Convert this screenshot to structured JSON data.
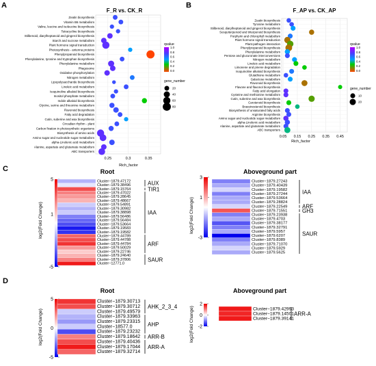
{
  "panels": {
    "A": {
      "label": "A",
      "title": "F_R vs. CK_R",
      "xlabel": "Rich_factor",
      "xticks": [
        "0.25",
        "0.3",
        "0.35"
      ],
      "legend": {
        "qvalue_title": "qvalue",
        "qvalue_ticks": [
          "1.0",
          "0.8",
          "0.6",
          "0.4",
          "0.2",
          "0.0"
        ],
        "gene_title": "gene_number",
        "gene_items": [
          "20",
          "40",
          "60",
          "80"
        ]
      }
    },
    "B": {
      "label": "B",
      "title": "F_AP vs. CK_AP",
      "xlabel": "Rich_factor",
      "xticks": [
        "0.05",
        "0.15",
        "0.25",
        "0.35",
        "0.45"
      ],
      "legend": {
        "qvalue_title": "qvalue",
        "qvalue_ticks": [
          "1.0",
          "0.8",
          "0.6",
          "0.4",
          "0.2",
          "0.0"
        ],
        "gene_title": "gene_number",
        "gene_items": [
          "10",
          "20"
        ]
      }
    },
    "C": {
      "label": "C",
      "ylabel": "log2(Fold Change)",
      "root_title": "Root",
      "ag_title": "Aboveground part"
    },
    "D": {
      "label": "D",
      "ylabel": "log2(Fold Change)",
      "root_title": "Root",
      "ag_title": "Aboveground part"
    }
  },
  "chart_data": [
    {
      "type": "scatter",
      "panel": "A",
      "title": "F_R vs. CK_R",
      "xlabel": "Rich_factor",
      "xlim": [
        0.22,
        0.38
      ],
      "categories": [
        "Zeatin biosynthesis",
        "Vitamin B6 metabolism",
        "Valine, leucine and isoleucine biosynthesis",
        "Tetracycline biosynthesis",
        "Stilbenoid, diarylheptanoid and gingerol biosynthesis",
        "Starch and sucrose metabolism",
        "Plant hormone signal transduction",
        "Photosynthesis - antenna proteins",
        "Phenylpropanoid biosynthesis",
        "Phenylalanine, tyrosine and tryptophan biosynthesis",
        "Phenylalanine metabolism",
        "Phagosome",
        "Oxidative phosphorylation",
        "Nitrogen metabolism",
        "Lipopolysaccharide biosynthesis",
        "Linoleic acid metabolism",
        "Isoquinoline alkaloid biosynthesis",
        "Inositol phosphate metabolism",
        "Indole alkaloid biosynthesis",
        "Glycine, serine and threonine metabolism",
        "Flavonoid biosynthesis",
        "Fatty acid degradation",
        "Cutin, suberine and wax biosynthesis",
        "Circadian rhythm - plant",
        "Carbon fixation in photosynthetic organisms",
        "Biosynthesis of amino acids",
        "Amino sugar and nucleotide sugar metabolism",
        "alpha-Linolenic acid metabolism",
        "Alanine, aspartate and glutamate metabolism",
        "ABC transporters"
      ],
      "x": [
        0.268,
        0.282,
        0.26,
        0.275,
        0.255,
        0.24,
        0.245,
        0.305,
        0.355,
        0.285,
        0.258,
        0.262,
        0.248,
        0.31,
        0.265,
        0.295,
        0.27,
        0.262,
        0.34,
        0.26,
        0.27,
        0.28,
        0.295,
        0.272,
        0.258,
        0.232,
        0.238,
        0.26,
        0.24,
        0.235
      ],
      "qvalue": [
        0.7,
        0.7,
        0.7,
        0.7,
        0.8,
        0.8,
        0.8,
        0.5,
        0.0,
        0.7,
        0.8,
        0.8,
        0.8,
        0.6,
        0.7,
        0.7,
        0.7,
        0.7,
        0.3,
        0.7,
        0.7,
        0.7,
        0.5,
        0.7,
        0.7,
        0.8,
        0.8,
        0.7,
        0.8,
        0.8
      ],
      "gene_number": [
        20,
        20,
        15,
        15,
        30,
        30,
        60,
        15,
        80,
        20,
        40,
        30,
        30,
        20,
        10,
        20,
        15,
        20,
        25,
        25,
        30,
        20,
        15,
        20,
        25,
        60,
        50,
        30,
        30,
        50
      ]
    },
    {
      "type": "scatter",
      "panel": "B",
      "title": "F_AP vs. CK_AP",
      "xlabel": "Rich_factor",
      "xlim": [
        0.04,
        0.5
      ],
      "categories": [
        "Zeatin biosynthesis",
        "Tyrosine metabolism",
        "Stilbenoid, diarylheptanoid and gingerol biosynthesis",
        "Sesquiterpenoid and triterpenoid biosynthesis",
        "Porphyrin and chlorophyll metabolism",
        "Plant hormone signal transduction",
        "Plant-pathogen interaction",
        "Phenylpropanoid biosynthesis",
        "Phenylalanine metabolism",
        "Pentose and glucuronate interconversions",
        "Nitrogen metabolism",
        "Linoleic acid metabolism",
        "Limonene and pinene degradation",
        "Isoquinoline alkaloid biosynthesis",
        "Glutathione metabolism",
        "Galactose metabolism",
        "Flavonoid biosynthesis",
        "Flavone and flavonol biosynthesis",
        "Fatty acid elongation",
        "Cysteine and methionine metabolism",
        "Cutin, suberine and wax biosynthesis",
        "Carotenoid biosynthesis",
        "Brassinosteroid biosynthesis",
        "Biosynthesis of unsaturated fatty acids",
        "Arginine biosynthesis",
        "Amino sugar and nucleotide sugar metabolism",
        "alpha-Linolenic acid metabolism",
        "Alanine, aspartate and glutamate metabolism",
        "ABC transporters"
      ],
      "x": [
        0.09,
        0.11,
        0.12,
        0.25,
        0.1,
        0.08,
        0.1,
        0.09,
        0.08,
        0.08,
        0.13,
        0.14,
        0.2,
        0.11,
        0.07,
        0.1,
        0.2,
        0.45,
        0.07,
        0.07,
        0.25,
        0.09,
        0.15,
        0.08,
        0.09,
        0.07,
        0.08,
        0.07,
        0.08
      ],
      "qvalue": [
        0.7,
        0.7,
        0.5,
        0.1,
        0.6,
        0.1,
        0.2,
        0.1,
        0.5,
        0.7,
        0.5,
        0.3,
        0.3,
        0.6,
        0.7,
        0.5,
        0.1,
        0.3,
        0.8,
        0.8,
        0.2,
        0.3,
        0.4,
        0.7,
        0.7,
        0.8,
        0.7,
        0.7,
        0.4
      ],
      "gene_number": [
        8,
        8,
        10,
        12,
        10,
        20,
        22,
        25,
        12,
        10,
        10,
        10,
        8,
        10,
        8,
        10,
        18,
        6,
        10,
        10,
        20,
        10,
        8,
        10,
        10,
        12,
        12,
        10,
        18
      ]
    },
    {
      "type": "heatmap",
      "panel": "C",
      "subpanel": "Root",
      "zlim": [
        -5,
        5
      ],
      "colorbar_ticks": [
        "5",
        "1",
        "-5"
      ],
      "rows": [
        "Cluster−1879.47172",
        "Cluster−1879.38496",
        "Cluster−1879.15764",
        "Cluster−1879.47022",
        "Cluster−1879.28645",
        "Cluster−1879.48667",
        "Cluster−1879.54891",
        "Cluster−1879.30982",
        "Cluster−1879.38898",
        "Cluster−1879.56486",
        "Cluster−1879.56484",
        "Cluster−1879.53664",
        "Cluster−1879.19583",
        "Cluster−1879.19582",
        "Cluster−1879.44789",
        "Cluster−1879.44788",
        "Cluster−1879.44784",
        "Cluster−1879.50029",
        "Cluster−1879.22746",
        "Cluster−1879.24640",
        "Cluster−1879.37806",
        "Cluster−12771.0"
      ],
      "values": [
        -1.5,
        -0.5,
        3.5,
        2.5,
        2.0,
        1.5,
        -1.0,
        -1.5,
        -1.0,
        -2.5,
        -3.0,
        -3.5,
        -4.5,
        -4.0,
        3.0,
        3.5,
        4.0,
        2.0,
        1.0,
        1.5,
        2.5,
        4.5
      ],
      "groups": [
        {
          "name": "AUX",
          "start": 0,
          "end": 1
        },
        {
          "name": "TIR1",
          "start": 2,
          "end": 2
        },
        {
          "name": "IAA",
          "start": 3,
          "end": 13
        },
        {
          "name": "ARF",
          "start": 14,
          "end": 18
        },
        {
          "name": "SAUR",
          "start": 19,
          "end": 21
        }
      ]
    },
    {
      "type": "heatmap",
      "panel": "C",
      "subpanel": "Aboveground part",
      "zlim": [
        -3,
        3
      ],
      "colorbar_ticks": [
        "3",
        "1",
        "-3"
      ],
      "rows": [
        "Cluster−1879.27243",
        "Cluster−1879.40439",
        "Cluster−1879.19582",
        "Cluster−1879.27244",
        "Cluster−1879.53664",
        "Cluster−1879.28824",
        "Cluster−1879.22549",
        "Cluster−1879.71551",
        "Cluster−1879.23938",
        "Cluster−1879.4703",
        "Cluster−1879.38177",
        "Cluster−1879.32791",
        "Cluster−1879.5957",
        "Cluster−1879.6207",
        "Cluster−1879.8389",
        "Cluster−1879.71070",
        "Cluster−1879.5929",
        "Cluster−1879.5625"
      ],
      "values": [
        -1.5,
        -1.0,
        -0.5,
        -1.5,
        -1.0,
        -1.0,
        -0.5,
        2.0,
        -1.5,
        -1.0,
        -2.0,
        -1.5,
        -1.0,
        -3.0,
        -1.5,
        -1.0,
        -0.5,
        -1.0
      ],
      "groups": [
        {
          "name": "IAA",
          "start": 0,
          "end": 5
        },
        {
          "name": "ARF",
          "start": 6,
          "end": 6
        },
        {
          "name": "GH3",
          "start": 7,
          "end": 7
        },
        {
          "name": "SAUR",
          "start": 8,
          "end": 17
        }
      ]
    },
    {
      "type": "heatmap",
      "panel": "D",
      "subpanel": "Root",
      "zlim": [
        -5,
        5
      ],
      "colorbar_ticks": [
        "5",
        "0",
        "-5"
      ],
      "rows": [
        "Cluster−1879.30713",
        "Cluster−1879.30712",
        "Cluster−1879.49579",
        "Cluster−1879.33963",
        "Cluster−1879.23315",
        "Cluster−18577.0",
        "Cluster−1879.23232",
        "Cluster−1879.18642",
        "Cluster−1879.40436",
        "Cluster−1879.17044",
        "Cluster−1879.32714"
      ],
      "values": [
        4.0,
        3.5,
        -1.0,
        -1.5,
        -2.0,
        -1.0,
        -3.5,
        2.5,
        3.5,
        4.5,
        3.0
      ],
      "groups": [
        {
          "name": "AHK_2_3_4",
          "start": 0,
          "end": 2
        },
        {
          "name": "AHP",
          "start": 3,
          "end": 6
        },
        {
          "name": "ARR-B",
          "start": 7,
          "end": 7
        },
        {
          "name": "ARR-A",
          "start": 8,
          "end": 10
        }
      ]
    },
    {
      "type": "heatmap",
      "panel": "D",
      "subpanel": "Aboveground part",
      "zlim": [
        -2,
        2
      ],
      "colorbar_ticks": [
        "2",
        "0",
        "-2"
      ],
      "rows": [
        "Cluster−1879.42993",
        "Cluster−1879.14501",
        "Cluster−1879.39141"
      ],
      "values": [
        1.8,
        1.7,
        1.8
      ],
      "groups": [
        {
          "name": "ARR-A",
          "start": 0,
          "end": 2
        }
      ]
    }
  ]
}
